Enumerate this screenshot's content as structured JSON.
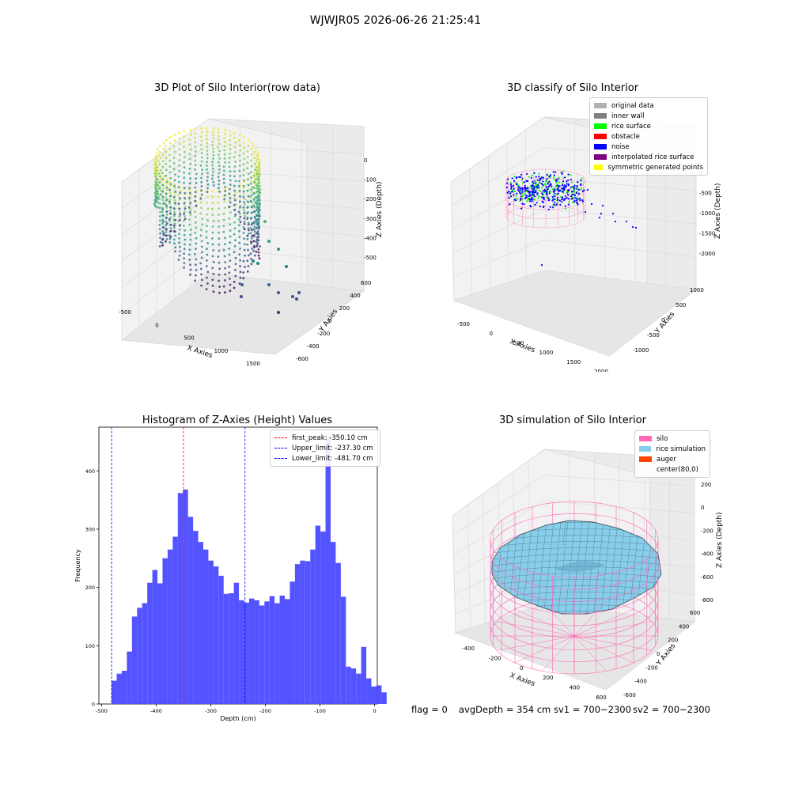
{
  "figure_title": "WJWJR05 2026-06-26 21:25:41",
  "colors": {
    "original": "#b0b0b0",
    "inner_wall": "#808080",
    "rice_surface": "#00ff00",
    "obstacle": "#ff0000",
    "noise": "#0000ff",
    "interpolated": "#800080",
    "symmetric": "#ffff00",
    "silo": "#ff69b4",
    "rice_sim": "#87ceeb",
    "auger": "#ff4500",
    "hist_bar": "#4a4aff"
  },
  "footer": {
    "flag": "flag = 0",
    "avg_depth": "avgDepth = 354 cm",
    "sv1": "sv1 = 700~2300",
    "sv2": "sv2 = 700~2300"
  },
  "chart_data": [
    {
      "type": "scatter",
      "title": "3D Plot of Silo Interior(row data)",
      "xlabel": "X Axies",
      "ylabel": "Y Axies",
      "zlabel": "Z Axies (Depth)",
      "x_ticks": [
        "-500",
        "0",
        "500",
        "1000",
        "1500"
      ],
      "y_ticks": [
        "600",
        "400",
        "200",
        "0",
        "-200",
        "-400",
        "-600"
      ],
      "z_ticks": [
        "0",
        "-100",
        "-200",
        "-300",
        "-400",
        "-500"
      ]
    },
    {
      "type": "scatter",
      "title": "3D classify of Silo Interior",
      "xlabel": "X Axies",
      "ylabel": "Y Axies",
      "zlabel": "Z Axies (Depth)",
      "x_ticks": [
        "-500",
        "0",
        "500",
        "1000",
        "1500",
        "2000"
      ],
      "y_ticks": [
        "1000",
        "500",
        "0",
        "-500",
        "-1000"
      ],
      "z_ticks": [
        "0",
        "-500",
        "-1000",
        "-1500",
        "-2000"
      ],
      "legend": [
        "original data",
        "inner wall",
        "rice surface",
        "obstacle",
        "noise",
        "interpolated rice surface",
        "symmetric generated points"
      ]
    },
    {
      "type": "bar",
      "title": "Histogram of Z-Axies (Height) Values",
      "xlabel": "Depth (cm)",
      "ylabel": "Frequency",
      "xlim": [
        -505,
        5
      ],
      "ylim": [
        0,
        475
      ],
      "x_ticks": [
        -500,
        -400,
        -300,
        -200,
        -100,
        0
      ],
      "y_ticks": [
        0,
        100,
        200,
        300,
        400
      ],
      "bin_start": -481.7,
      "bin_width": 9.33,
      "values": [
        40,
        52,
        57,
        90,
        150,
        165,
        173,
        208,
        230,
        207,
        250,
        265,
        287,
        362,
        368,
        321,
        297,
        278,
        265,
        246,
        236,
        220,
        189,
        190,
        208,
        178,
        174,
        181,
        178,
        169,
        176,
        185,
        173,
        186,
        180,
        210,
        240,
        246,
        245,
        265,
        306,
        296,
        458,
        278,
        242,
        184,
        64,
        61,
        52,
        98,
        44,
        30,
        32,
        20
      ],
      "annotations": [
        {
          "label": "first_peak: -350.10 cm",
          "x": -350.1,
          "color": "#ff0000"
        },
        {
          "label": "Upper_limit: -237.30 cm",
          "x": -237.3,
          "color": "#0000ff"
        },
        {
          "label": "Lower_limit: -481.70 cm",
          "x": -481.7,
          "color": "#0000ff"
        }
      ]
    },
    {
      "type": "area",
      "title": "3D simulation of Silo Interior",
      "xlabel": "X Axies",
      "ylabel": "Y Axies",
      "zlabel": "Z Axies (Depth)",
      "x_ticks": [
        "-400",
        "-200",
        "0",
        "200",
        "400",
        "600"
      ],
      "y_ticks": [
        "600",
        "400",
        "200",
        "0",
        "-200",
        "-400",
        "-600"
      ],
      "z_ticks": [
        "200",
        "0",
        "-200",
        "-400",
        "-600",
        "-800"
      ],
      "legend": [
        "silo",
        "rice simulation",
        "auger",
        "center(80,0)"
      ]
    }
  ]
}
